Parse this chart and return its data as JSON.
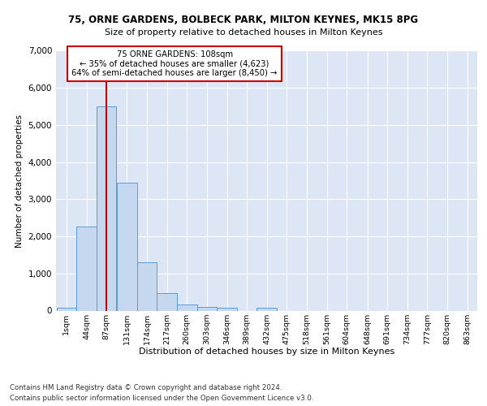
{
  "title1": "75, ORNE GARDENS, BOLBECK PARK, MILTON KEYNES, MK15 8PG",
  "title2": "Size of property relative to detached houses in Milton Keynes",
  "xlabel": "Distribution of detached houses by size in Milton Keynes",
  "ylabel": "Number of detached properties",
  "footnote1": "Contains HM Land Registry data © Crown copyright and database right 2024.",
  "footnote2": "Contains public sector information licensed under the Open Government Licence v3.0.",
  "bar_labels": [
    "1sqm",
    "44sqm",
    "87sqm",
    "131sqm",
    "174sqm",
    "217sqm",
    "260sqm",
    "303sqm",
    "346sqm",
    "389sqm",
    "432sqm",
    "475sqm",
    "518sqm",
    "561sqm",
    "604sqm",
    "648sqm",
    "691sqm",
    "734sqm",
    "777sqm",
    "820sqm",
    "863sqm"
  ],
  "bar_values": [
    80,
    2270,
    5500,
    3450,
    1310,
    480,
    165,
    90,
    75,
    0,
    75,
    0,
    0,
    0,
    0,
    0,
    0,
    0,
    0,
    0,
    0
  ],
  "bar_color": "#c5d8f0",
  "bar_edge_color": "#5b9bd5",
  "property_line_x": 2,
  "vline_color": "#cc0000",
  "ann_line1": "75 ORNE GARDENS: 108sqm",
  "ann_line2": "← 35% of detached houses are smaller (4,623)",
  "ann_line3": "64% of semi-detached houses are larger (8,450) →",
  "annotation_box_edge": "#cc0000",
  "ylim": [
    0,
    7000
  ],
  "yticks": [
    0,
    1000,
    2000,
    3000,
    4000,
    5000,
    6000,
    7000
  ],
  "fig_bg_color": "#ffffff",
  "plot_bg_color": "#dce6f5"
}
